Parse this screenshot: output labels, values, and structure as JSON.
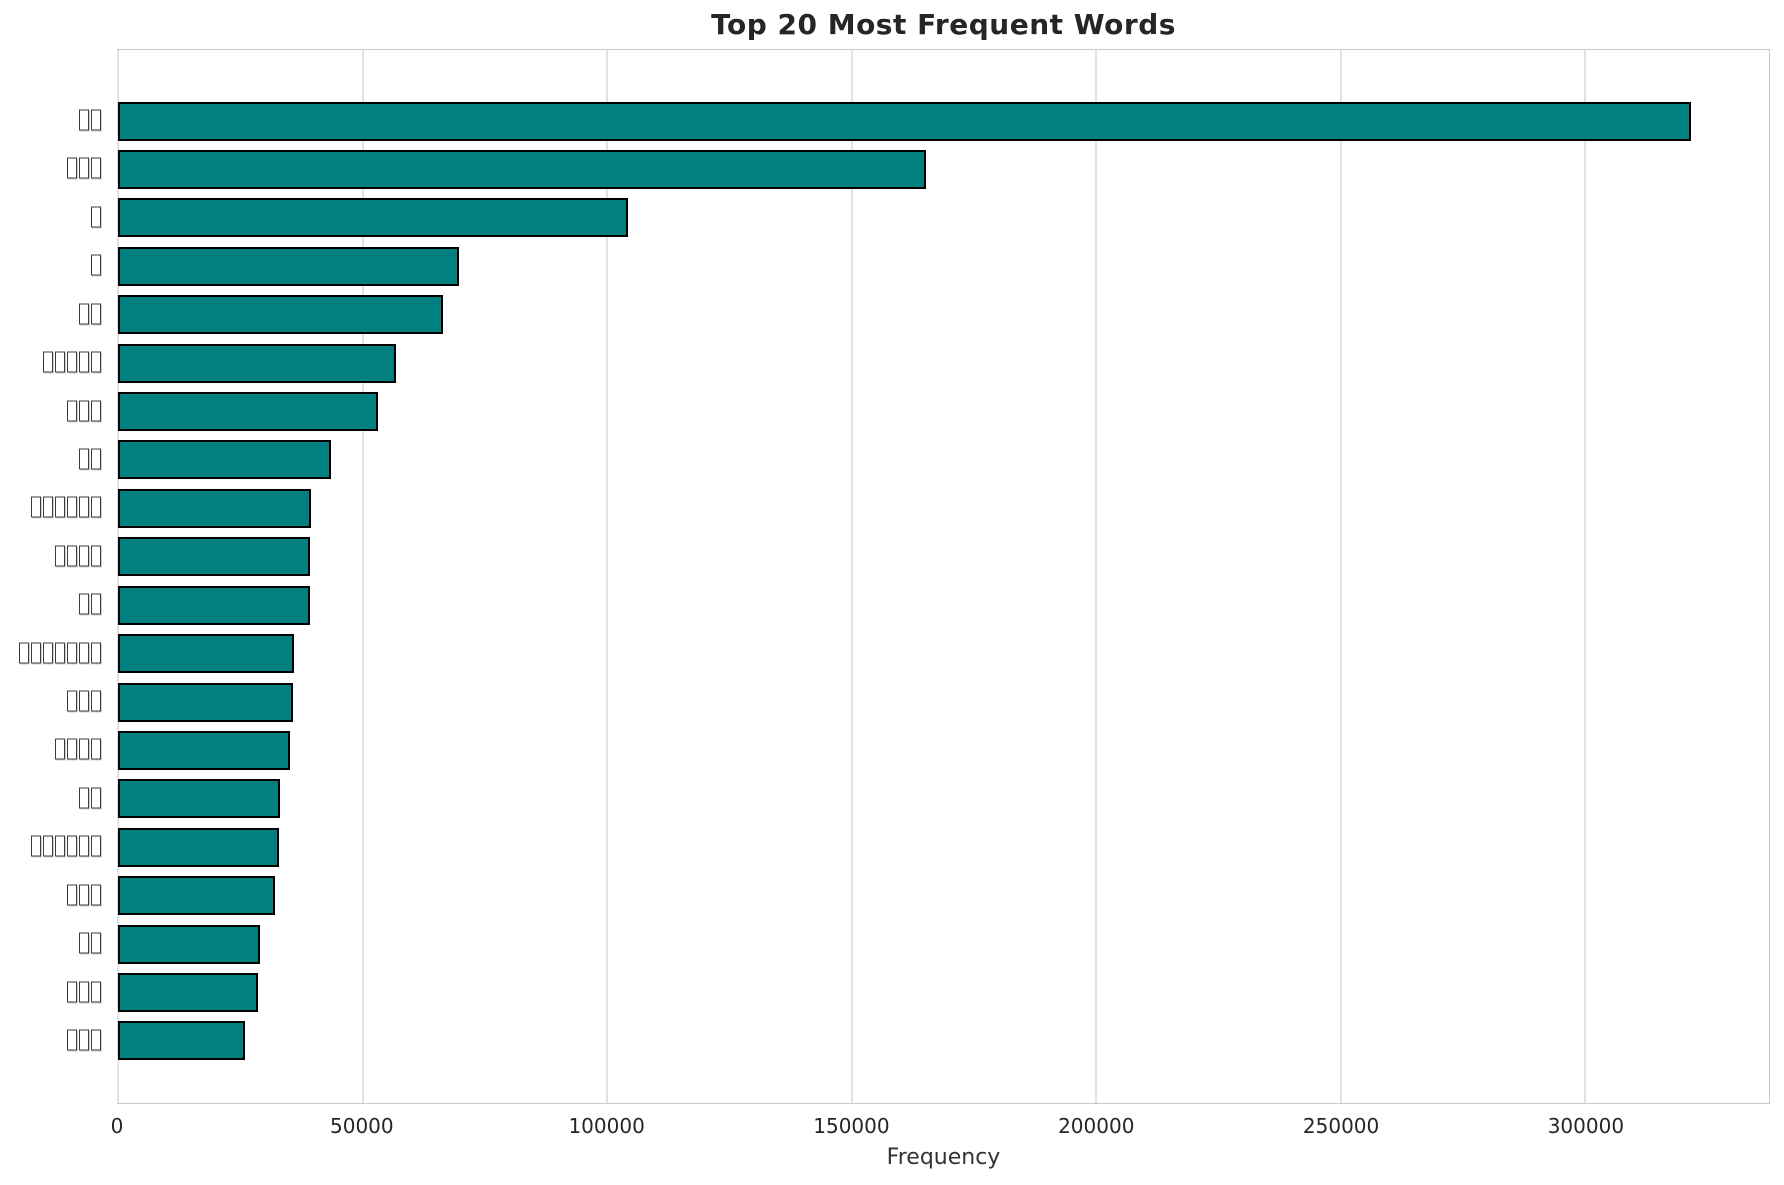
{
  "chart_data": {
    "type": "bar",
    "orientation": "horizontal",
    "title": "Top 20 Most Frequent Words",
    "xlabel": "Frequency",
    "ylabel": "",
    "categories": [
      "□□",
      "□□□",
      "□",
      "□",
      "□□",
      "□□□□□",
      "□□□",
      "□□",
      "□□□□□□",
      "□□□□",
      "□□",
      "□□□□□□□",
      "□□□",
      "□□□□",
      "□□",
      "□□□□□□",
      "□□□",
      "□□",
      "□□□",
      "□□□"
    ],
    "values": [
      321600,
      165200,
      104200,
      69800,
      66400,
      56800,
      53100,
      43500,
      39500,
      39300,
      39200,
      35900,
      35700,
      35100,
      33100,
      32900,
      32100,
      29000,
      28600,
      26000
    ],
    "xlim": [
      0,
      337600
    ],
    "xticks": [
      0,
      50000,
      100000,
      150000,
      200000,
      250000,
      300000
    ],
    "grid": true,
    "legend": "none",
    "bar_color": "#008080",
    "bar_edge_color": "#000000",
    "grid_color": "#e2e2e2",
    "spine_color": "#c8c8c8",
    "title_color": "#262626",
    "tick_label_color": "#262626",
    "axis_title_color": "#333333"
  }
}
